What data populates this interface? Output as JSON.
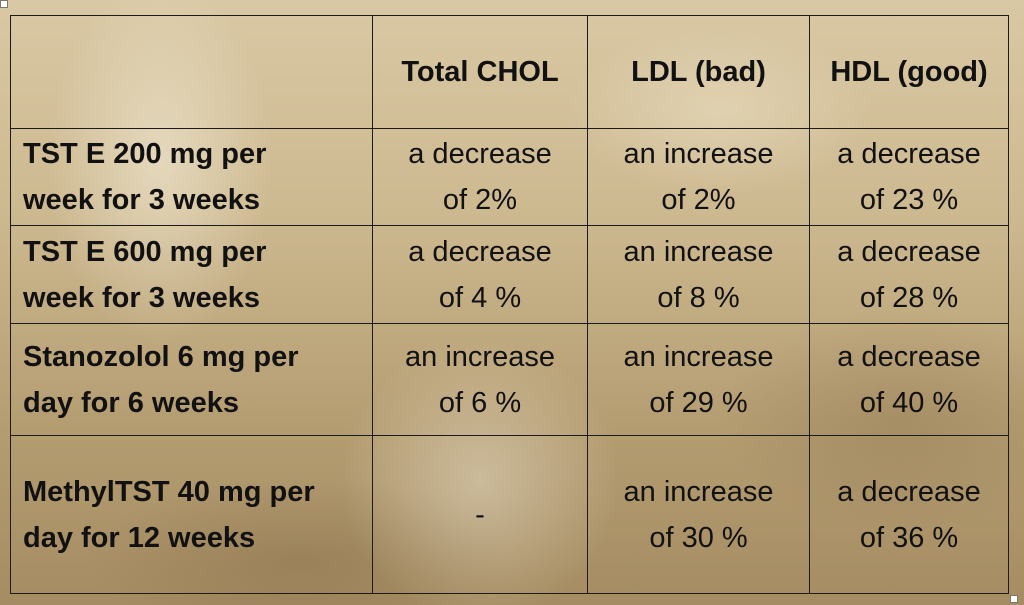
{
  "table": {
    "headers": [
      "",
      "Total CHOL",
      "LDL (bad)",
      "HDL (good)"
    ],
    "rows": [
      {
        "label": [
          "TST E 200 mg per",
          "week for 3 weeks"
        ],
        "total_chol": [
          "a decrease",
          "of 2%"
        ],
        "ldl": [
          "an increase",
          "of 2%"
        ],
        "hdl": [
          "a decrease",
          "of 23 %"
        ]
      },
      {
        "label": [
          "TST E 600 mg per",
          "week for 3 weeks"
        ],
        "total_chol": [
          "a decrease",
          "of 4 %"
        ],
        "ldl": [
          "an increase",
          "of 8 %"
        ],
        "hdl": [
          "a decrease",
          "of 28 %"
        ]
      },
      {
        "label": [
          "Stanozolol 6 mg per",
          "day for 6 weeks"
        ],
        "total_chol": [
          "an increase",
          "of 6 %"
        ],
        "ldl": [
          "an increase",
          "of 29 %"
        ],
        "hdl": [
          "a decrease",
          "of 40 %"
        ]
      },
      {
        "label": [
          "MethylTST 40 mg per",
          "day for 12 weeks"
        ],
        "total_chol": [
          "-"
        ],
        "ldl": [
          "an increase",
          "of 30 %"
        ],
        "hdl": [
          "a decrease",
          "of 36 %"
        ]
      }
    ]
  }
}
